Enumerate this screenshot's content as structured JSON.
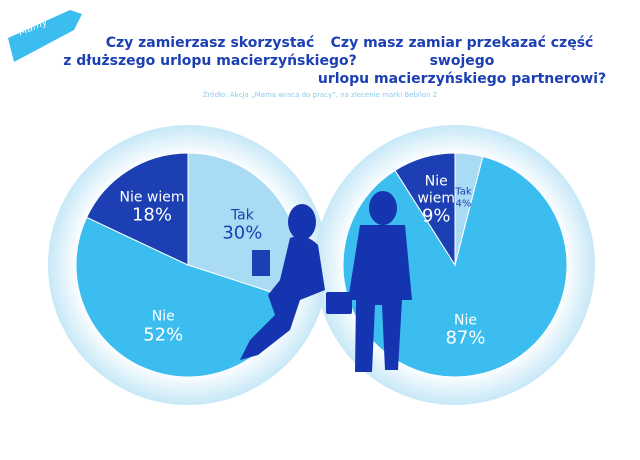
{
  "banner": "Mamy",
  "source": "Źródło: Akcja „Mama wraca do pracy”, na zlecenie marki Bebilon 2",
  "chart_data": [
    {
      "type": "pie",
      "title": "Czy zamierzasz skorzystać\nz dłuższego urlopu macierzyńskiego?",
      "categories": [
        "Tak",
        "Nie",
        "Nie wiem"
      ],
      "values": [
        30,
        52,
        18
      ],
      "value_labels": [
        "30%",
        "52%",
        "18%"
      ],
      "colors": [
        "#a9dcf4",
        "#3cbdf0",
        "#1c3fb3"
      ]
    },
    {
      "type": "pie",
      "title": "Czy masz zamiar przekazać część swojego\nurlopu macierzyńskiego partnerowi?",
      "categories": [
        "Tak",
        "Nie",
        "Nie wiem"
      ],
      "values": [
        4,
        87,
        9
      ],
      "value_labels": [
        "4%",
        "87%",
        "9%"
      ],
      "colors": [
        "#a9dcf4",
        "#3cbdf0",
        "#1c3fb3"
      ]
    }
  ]
}
